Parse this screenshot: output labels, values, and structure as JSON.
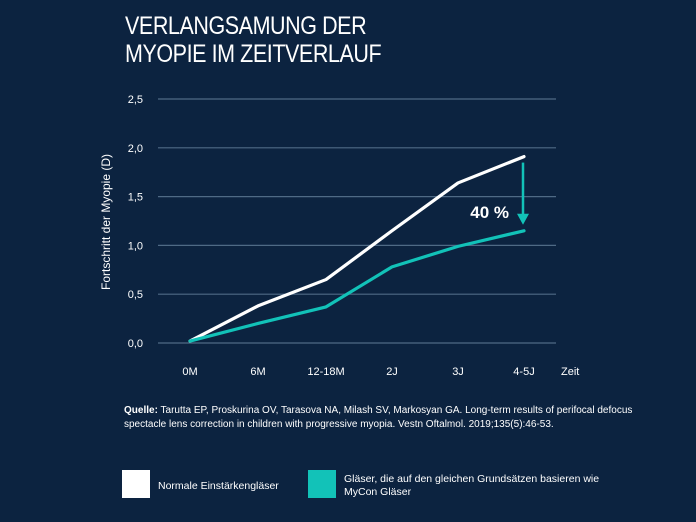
{
  "title_lines": [
    "VERLANGSAMUNG DER",
    "MYOPIE IM ZEITVERLAUF"
  ],
  "chart_data": {
    "type": "line",
    "categories": [
      "0M",
      "6M",
      "12-18M",
      "2J",
      "3J",
      "4-5J"
    ],
    "series": [
      {
        "name": "Normale Einstärkengläser",
        "color": "#ffffff",
        "values": [
          0.02,
          0.38,
          0.65,
          1.15,
          1.64,
          1.91
        ]
      },
      {
        "name": "Gläser, die auf den gleichen Grundsätzen basieren wie MyCon Gläser",
        "color": "#12c2b8",
        "values": [
          0.02,
          0.2,
          0.37,
          0.78,
          0.99,
          1.15
        ]
      }
    ],
    "ylabel": "Fortschritt der Myopie (D)",
    "xlabel": "Zeit",
    "ylim": [
      0,
      2.5
    ],
    "yticks": [
      "0,0",
      "0,5",
      "1,0",
      "1,5",
      "2,0",
      "2,5"
    ],
    "grid": true,
    "annotation": {
      "label": "40 %",
      "from": 1.91,
      "to": 1.15,
      "at": "4-5J"
    }
  },
  "source": {
    "prefix": "Quelle:",
    "text": " Tarutta EP, Proskurina OV, Tarasova NA, Milash SV, Markosyan GA. Long-term results of perifocal defocus spectacle lens correction in children with progressive myopia. Vestn Oftalmol. 2019;135(5):46-53."
  },
  "legend": {
    "item1": "Normale Einstärkengläser",
    "item2": "Gläser, die auf den gleichen Grundsätzen basieren wie MyCon Gläser"
  },
  "colors": {
    "background": "#0c2340",
    "white_series": "#ffffff",
    "teal_series": "#12c2b8",
    "grid": "#4f6a85"
  }
}
